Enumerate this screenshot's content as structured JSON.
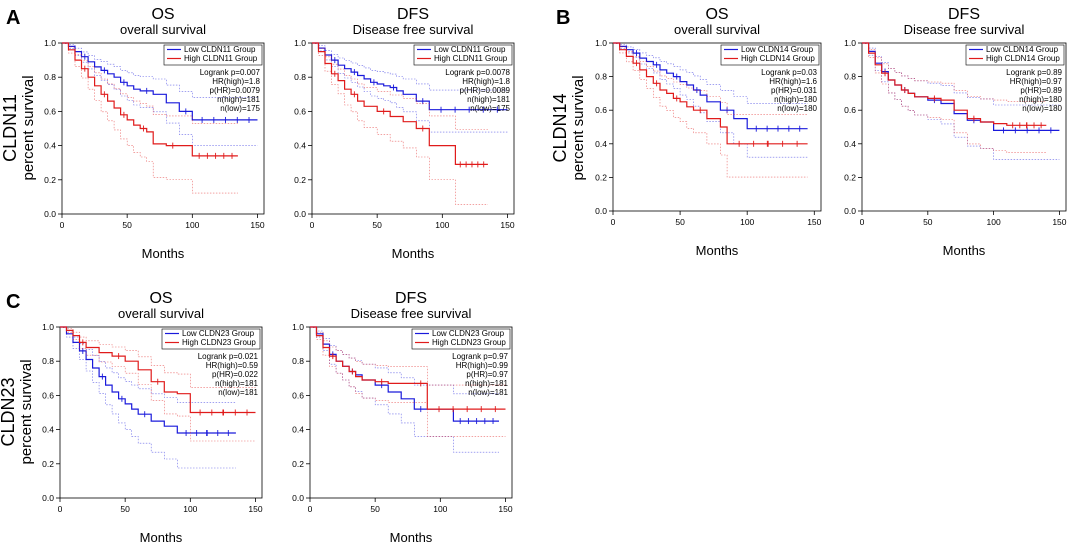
{
  "row_labels": [
    {
      "letter": "A",
      "gene": "CLDN11",
      "ylabel": "percent survival"
    },
    {
      "letter": "B",
      "gene": "CLDN14",
      "ylabel": "percent survival"
    },
    {
      "letter": "C",
      "gene": "CLDN23",
      "ylabel": "percent survival"
    }
  ],
  "colors": {
    "low": "#1a1adb",
    "high": "#e01b1b",
    "axis": "#000000"
  },
  "chart_data": [
    {
      "type": "line",
      "title": "OS",
      "subtitle": "overall survival",
      "xlabel": "Months",
      "xticks": [
        0,
        50,
        100,
        150
      ],
      "yticks": [
        0.0,
        0.2,
        0.4,
        0.6,
        0.8,
        1.0
      ],
      "xlim": [
        0,
        155
      ],
      "ylim": [
        0,
        1.0
      ],
      "legend": [
        "Low CLDN11 Group",
        "High CLDN11 Group"
      ],
      "stats": [
        "Logrank p=0.007",
        "HR(high)=1.8",
        "p(HR)=0.0079",
        "n(high)=181",
        "n(low)=175"
      ],
      "series": [
        {
          "name": "Low CLDN11 Group",
          "group": "low",
          "x": [
            0,
            5,
            10,
            15,
            20,
            25,
            30,
            35,
            40,
            45,
            50,
            55,
            60,
            70,
            80,
            90,
            100,
            150
          ],
          "y": [
            1.0,
            0.98,
            0.95,
            0.92,
            0.89,
            0.86,
            0.84,
            0.82,
            0.8,
            0.77,
            0.75,
            0.73,
            0.72,
            0.7,
            0.65,
            0.6,
            0.55,
            0.55
          ]
        },
        {
          "name": "High CLDN11 Group",
          "group": "high",
          "x": [
            0,
            5,
            10,
            15,
            20,
            25,
            30,
            35,
            40,
            45,
            50,
            55,
            60,
            65,
            70,
            80,
            90,
            100,
            135
          ],
          "y": [
            1.0,
            0.96,
            0.9,
            0.85,
            0.8,
            0.75,
            0.7,
            0.66,
            0.62,
            0.58,
            0.55,
            0.52,
            0.5,
            0.48,
            0.41,
            0.4,
            0.4,
            0.34,
            0.34
          ]
        }
      ]
    },
    {
      "type": "line",
      "title": "DFS",
      "subtitle": "Disease free survival",
      "xlabel": "Months",
      "xticks": [
        0,
        50,
        100,
        150
      ],
      "yticks": [
        0.0,
        0.2,
        0.4,
        0.6,
        0.8,
        1.0
      ],
      "xlim": [
        0,
        155
      ],
      "ylim": [
        0,
        1.0
      ],
      "legend": [
        "Low CLDN11 Group",
        "High CLDN11 Group"
      ],
      "stats": [
        "Logrank p=0.0078",
        "HR(high)=1.8",
        "p(HR)=0.0089",
        "n(high)=181",
        "n(low)=175"
      ],
      "series": [
        {
          "name": "Low CLDN11 Group",
          "group": "low",
          "x": [
            0,
            5,
            10,
            15,
            20,
            25,
            30,
            35,
            40,
            45,
            50,
            55,
            60,
            65,
            70,
            80,
            90,
            150
          ],
          "y": [
            1.0,
            0.97,
            0.93,
            0.9,
            0.87,
            0.85,
            0.83,
            0.81,
            0.79,
            0.77,
            0.76,
            0.75,
            0.74,
            0.72,
            0.7,
            0.66,
            0.61,
            0.61
          ]
        },
        {
          "name": "High CLDN11 Group",
          "group": "high",
          "x": [
            0,
            5,
            10,
            15,
            20,
            25,
            30,
            35,
            40,
            50,
            60,
            70,
            80,
            90,
            110,
            135
          ],
          "y": [
            1.0,
            0.95,
            0.88,
            0.82,
            0.78,
            0.73,
            0.7,
            0.66,
            0.63,
            0.6,
            0.57,
            0.54,
            0.5,
            0.4,
            0.29,
            0.29
          ]
        }
      ]
    },
    {
      "type": "line",
      "title": "OS",
      "subtitle": "overall survival",
      "xlabel": "Months",
      "xticks": [
        0,
        50,
        100,
        150
      ],
      "yticks": [
        0.0,
        0.2,
        0.4,
        0.6,
        0.8,
        1.0
      ],
      "xlim": [
        0,
        155
      ],
      "ylim": [
        0,
        1.0
      ],
      "legend": [
        "Low CLDN14 Group",
        "High CLDN14 Group"
      ],
      "stats": [
        "Logrank p=0.03",
        "HR(high)=1.6",
        "p(HR)=0.031",
        "n(high)=180",
        "n(low)=180"
      ],
      "series": [
        {
          "name": "Low CLDN14 Group",
          "group": "low",
          "x": [
            0,
            5,
            10,
            15,
            20,
            25,
            30,
            35,
            40,
            45,
            50,
            55,
            60,
            65,
            70,
            80,
            90,
            100,
            145
          ],
          "y": [
            1.0,
            0.98,
            0.96,
            0.94,
            0.91,
            0.89,
            0.87,
            0.84,
            0.82,
            0.8,
            0.77,
            0.75,
            0.72,
            0.69,
            0.65,
            0.6,
            0.55,
            0.49,
            0.49
          ]
        },
        {
          "name": "High CLDN14 Group",
          "group": "high",
          "x": [
            0,
            5,
            10,
            15,
            20,
            25,
            30,
            35,
            40,
            45,
            50,
            55,
            60,
            70,
            80,
            85,
            145
          ],
          "y": [
            1.0,
            0.96,
            0.92,
            0.88,
            0.84,
            0.8,
            0.76,
            0.72,
            0.7,
            0.67,
            0.65,
            0.62,
            0.6,
            0.55,
            0.5,
            0.4,
            0.4
          ]
        }
      ]
    },
    {
      "type": "line",
      "title": "DFS",
      "subtitle": "Disease free survival",
      "xlabel": "Months",
      "xticks": [
        0,
        50,
        100,
        150
      ],
      "yticks": [
        0.0,
        0.2,
        0.4,
        0.6,
        0.8,
        1.0
      ],
      "xlim": [
        0,
        155
      ],
      "ylim": [
        0,
        1.0
      ],
      "legend": [
        "Low CLDN14 Group",
        "High CLDN14 Group"
      ],
      "stats": [
        "Logrank p=0.89",
        "HR(high)=0.97",
        "p(HR)=0.89",
        "n(high)=180",
        "n(low)=180"
      ],
      "series": [
        {
          "name": "Low CLDN14 Group",
          "group": "low",
          "x": [
            0,
            5,
            10,
            15,
            20,
            25,
            30,
            35,
            40,
            50,
            60,
            70,
            80,
            90,
            100,
            150
          ],
          "y": [
            1.0,
            0.95,
            0.88,
            0.83,
            0.78,
            0.75,
            0.72,
            0.7,
            0.68,
            0.66,
            0.64,
            0.58,
            0.54,
            0.53,
            0.48,
            0.48
          ]
        },
        {
          "name": "High CLDN14 Group",
          "group": "high",
          "x": [
            0,
            5,
            10,
            15,
            20,
            25,
            30,
            35,
            40,
            50,
            60,
            70,
            80,
            90,
            100,
            110,
            140
          ],
          "y": [
            1.0,
            0.94,
            0.87,
            0.82,
            0.78,
            0.75,
            0.72,
            0.7,
            0.68,
            0.67,
            0.66,
            0.6,
            0.55,
            0.53,
            0.52,
            0.51,
            0.51
          ]
        }
      ]
    },
    {
      "type": "line",
      "title": "OS",
      "subtitle": "overall survival",
      "xlabel": "Months",
      "xticks": [
        0,
        50,
        100,
        150
      ],
      "yticks": [
        0.0,
        0.2,
        0.4,
        0.6,
        0.8,
        1.0
      ],
      "xlim": [
        0,
        155
      ],
      "ylim": [
        0,
        1.0
      ],
      "legend": [
        "Low CLDN23 Group",
        "High CLDN23 Group"
      ],
      "stats": [
        "Logrank p=0.021",
        "HR(high)=0.59",
        "p(HR)=0.022",
        "n(high)=181",
        "n(low)=181"
      ],
      "series": [
        {
          "name": "Low CLDN23 Group",
          "group": "low",
          "x": [
            0,
            5,
            10,
            15,
            20,
            25,
            30,
            35,
            40,
            45,
            50,
            55,
            60,
            70,
            80,
            90,
            135
          ],
          "y": [
            1.0,
            0.96,
            0.91,
            0.86,
            0.81,
            0.76,
            0.71,
            0.66,
            0.62,
            0.58,
            0.55,
            0.52,
            0.49,
            0.45,
            0.42,
            0.38,
            0.38
          ]
        },
        {
          "name": "High CLDN23 Group",
          "group": "high",
          "x": [
            0,
            5,
            10,
            15,
            20,
            30,
            40,
            50,
            60,
            70,
            80,
            90,
            100,
            150
          ],
          "y": [
            1.0,
            0.98,
            0.95,
            0.91,
            0.88,
            0.85,
            0.83,
            0.8,
            0.75,
            0.68,
            0.62,
            0.61,
            0.5,
            0.5
          ]
        }
      ]
    },
    {
      "type": "line",
      "title": "DFS",
      "subtitle": "Disease free survival",
      "xlabel": "Months",
      "xticks": [
        0,
        50,
        100,
        150
      ],
      "yticks": [
        0.0,
        0.2,
        0.4,
        0.6,
        0.8,
        1.0
      ],
      "xlim": [
        0,
        155
      ],
      "ylim": [
        0,
        1.0
      ],
      "legend": [
        "Low CLDN23 Group",
        "High CLDN23 Group"
      ],
      "stats": [
        "Logrank p=0.97",
        "HR(high)=0.99",
        "p(HR)=0.97",
        "n(high)=181",
        "n(low)=181"
      ],
      "series": [
        {
          "name": "Low CLDN23 Group",
          "group": "low",
          "x": [
            0,
            5,
            10,
            15,
            20,
            25,
            30,
            35,
            40,
            50,
            60,
            70,
            80,
            90,
            110,
            145
          ],
          "y": [
            1.0,
            0.96,
            0.9,
            0.84,
            0.8,
            0.77,
            0.74,
            0.72,
            0.69,
            0.66,
            0.62,
            0.58,
            0.52,
            0.52,
            0.45,
            0.45
          ]
        },
        {
          "name": "High CLDN23 Group",
          "group": "high",
          "x": [
            0,
            5,
            10,
            15,
            20,
            25,
            30,
            35,
            40,
            50,
            60,
            70,
            80,
            90,
            150
          ],
          "y": [
            1.0,
            0.95,
            0.88,
            0.83,
            0.8,
            0.77,
            0.74,
            0.71,
            0.69,
            0.68,
            0.67,
            0.67,
            0.67,
            0.52,
            0.52
          ]
        }
      ]
    }
  ]
}
